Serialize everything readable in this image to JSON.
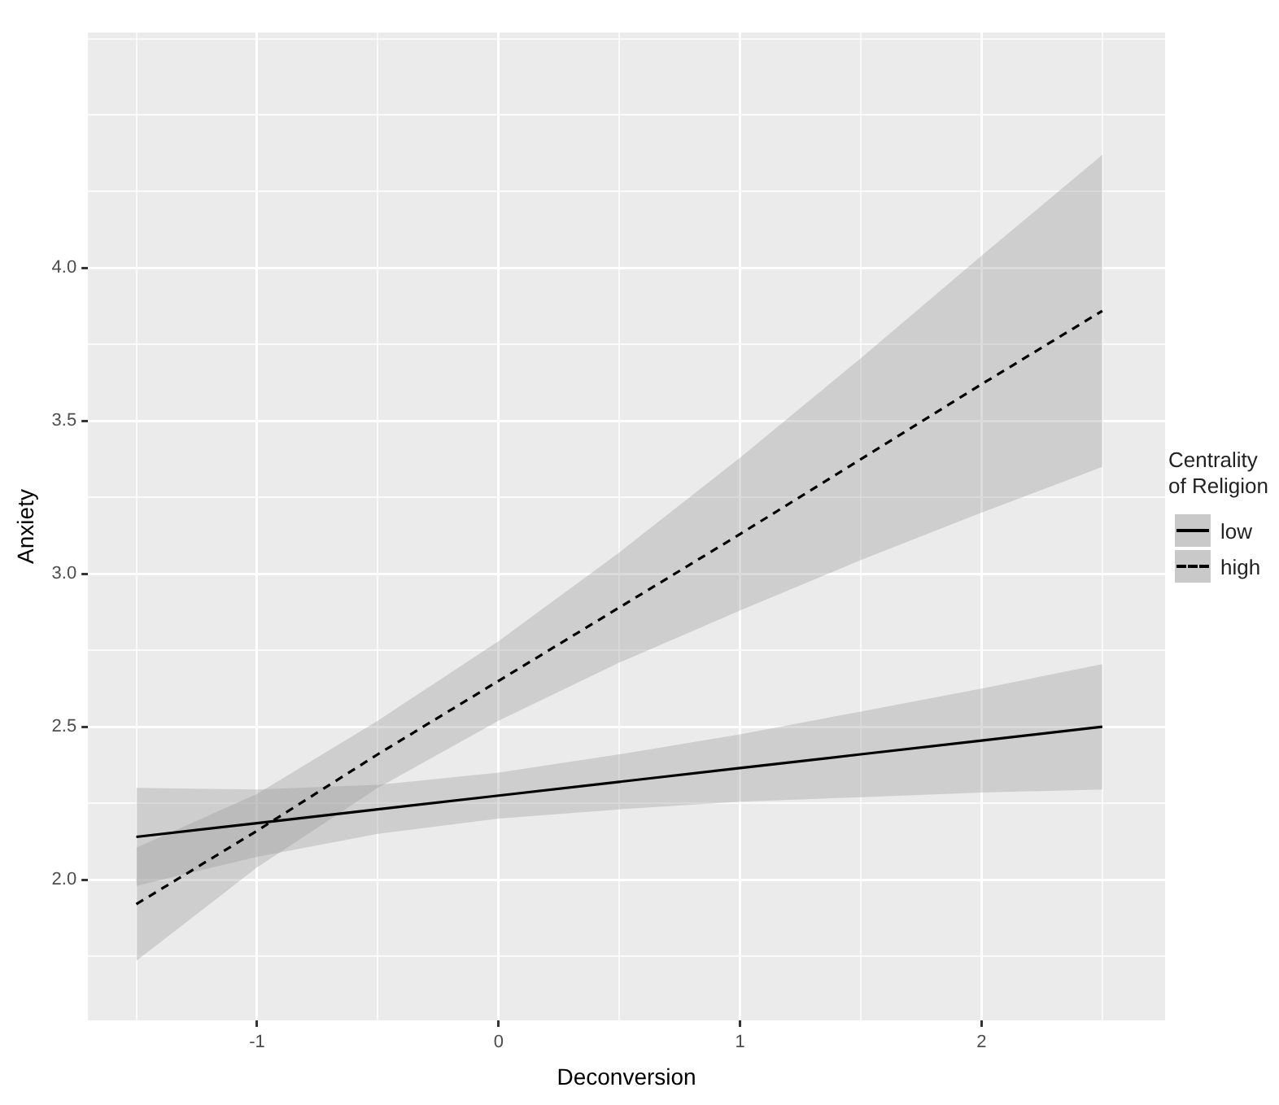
{
  "chart_data": {
    "type": "line",
    "xlabel": "Deconversion",
    "ylabel": "Anxiety",
    "legend_title": "Centrality of Religion",
    "legend": "right",
    "grid": true,
    "marker": "none",
    "x": [
      -1.5,
      -1,
      -0.5,
      0,
      0.5,
      1,
      1.5,
      2,
      2.5
    ],
    "xlim": [
      -1.7,
      2.76
    ],
    "xticks": [
      {
        "value": -1.5,
        "label": null
      },
      -1,
      {
        "value": -0.5,
        "label": null
      },
      0,
      {
        "value": 0.5,
        "label": null
      },
      1,
      {
        "value": 1.5,
        "label": null
      },
      2,
      {
        "value": 2.5,
        "label": null
      }
    ],
    "ylim": [
      1.54,
      4.77
    ],
    "yticks": [
      {
        "value": 1.75,
        "label": null
      },
      {
        "value": 2,
        "label": "2.0"
      },
      {
        "value": 2.25,
        "label": null
      },
      2.5,
      {
        "value": 2.75,
        "label": null
      },
      {
        "value": 3,
        "label": "3.0"
      },
      {
        "value": 3.25,
        "label": null
      },
      3.5,
      {
        "value": 3.75,
        "label": null
      },
      {
        "value": 4,
        "label": "4.0"
      },
      {
        "value": 4.25,
        "label": null
      },
      {
        "value": 4.5,
        "label": null
      },
      {
        "value": 4.75,
        "label": null
      }
    ],
    "series": [
      {
        "name": "low",
        "color": "#000000",
        "line_style": "solid",
        "values": [
          2.14,
          2.185,
          2.23,
          2.275,
          2.32,
          2.365,
          2.41,
          2.455,
          2.5
        ],
        "lower": [
          1.98,
          2.075,
          2.15,
          2.2,
          2.23,
          2.255,
          2.27,
          2.285,
          2.295
        ],
        "upper": [
          2.3,
          2.295,
          2.31,
          2.35,
          2.41,
          2.475,
          2.55,
          2.625,
          2.705
        ]
      },
      {
        "name": "high",
        "color": "#000000",
        "line_style": "dashed",
        "values": [
          1.92,
          2.16,
          2.41,
          2.65,
          2.89,
          3.13,
          3.375,
          3.62,
          3.86
        ],
        "lower": [
          1.735,
          2.04,
          2.3,
          2.52,
          2.71,
          2.88,
          3.045,
          3.2,
          3.35
        ],
        "upper": [
          2.105,
          2.28,
          2.52,
          2.78,
          3.07,
          3.38,
          3.705,
          4.04,
          4.37
        ]
      }
    ]
  }
}
